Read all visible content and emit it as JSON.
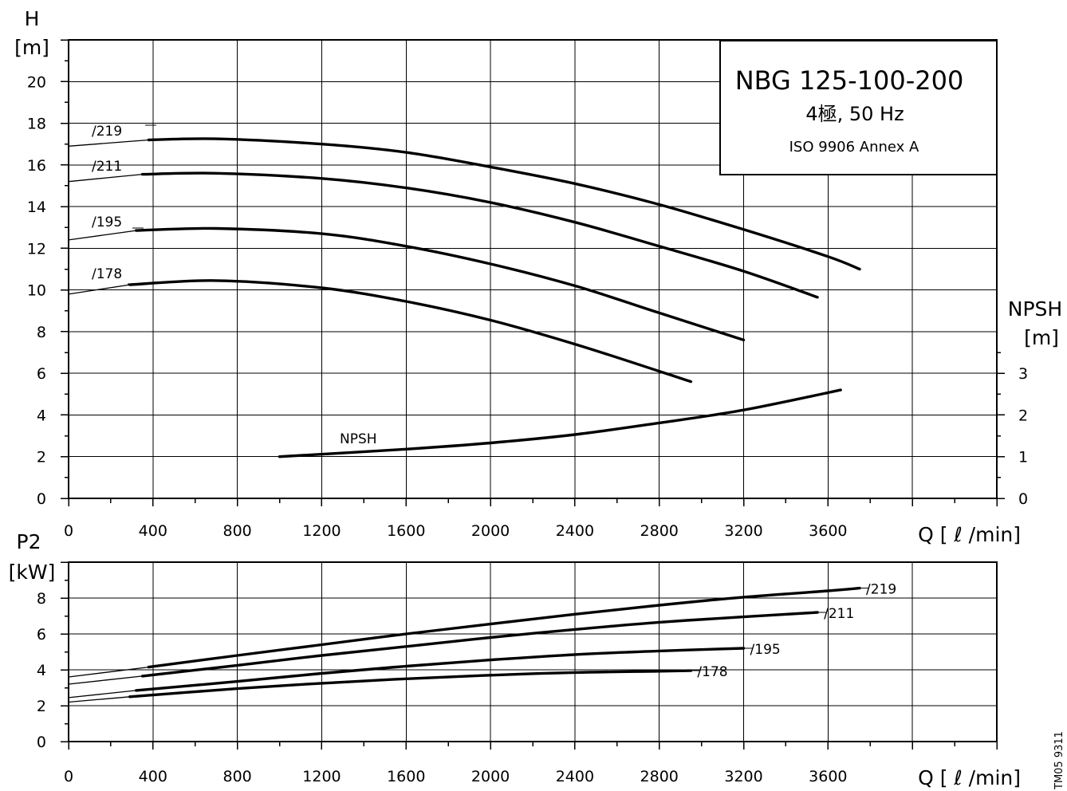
{
  "title_box": {
    "model": "NBG 125-100-200",
    "poles": "4極, 50 Hz",
    "standard": "ISO 9906 Annex A"
  },
  "figure_code": "TM05 9311",
  "chart_data": [
    {
      "type": "line",
      "xlabel": "Q [ ℓ /min]",
      "ylabel_line1": "H",
      "ylabel_line2": "[m]",
      "y2label_line1": "NPSH",
      "y2label_line2": "[m]",
      "xlim": [
        0,
        4400
      ],
      "ylim": [
        0,
        22
      ],
      "y2lim": [
        0,
        4
      ],
      "x_ticks": [
        0,
        400,
        800,
        1200,
        1600,
        2000,
        2400,
        2800,
        3200,
        3600
      ],
      "y_ticks": [
        0,
        2,
        4,
        6,
        8,
        10,
        12,
        14,
        16,
        18,
        20
      ],
      "y2_ticks": [
        0,
        1,
        2,
        3
      ],
      "grid": true,
      "series": [
        {
          "name": "/219",
          "x": [
            0,
            380,
            700,
            1200,
            1600,
            2000,
            2400,
            2800,
            3200,
            3600,
            3750
          ],
          "y": [
            16.9,
            17.2,
            17.25,
            17.0,
            16.6,
            15.9,
            15.1,
            14.1,
            12.9,
            11.6,
            11.0
          ]
        },
        {
          "name": "/211",
          "x": [
            0,
            350,
            700,
            1200,
            1600,
            2000,
            2400,
            2800,
            3200,
            3550
          ],
          "y": [
            15.2,
            15.55,
            15.6,
            15.35,
            14.9,
            14.2,
            13.25,
            12.1,
            10.9,
            9.65
          ]
        },
        {
          "name": "/195",
          "x": [
            0,
            320,
            700,
            1200,
            1600,
            2000,
            2400,
            2800,
            3200
          ],
          "y": [
            12.4,
            12.85,
            12.95,
            12.7,
            12.1,
            11.25,
            10.2,
            8.9,
            7.6
          ]
        },
        {
          "name": "/178",
          "x": [
            0,
            290,
            700,
            1200,
            1600,
            2000,
            2400,
            2800,
            2950
          ],
          "y": [
            9.8,
            10.25,
            10.45,
            10.1,
            9.45,
            8.55,
            7.4,
            6.1,
            5.6
          ]
        },
        {
          "name": "NPSH",
          "axis": "y2",
          "x": [
            1000,
            1600,
            2000,
            2400,
            2800,
            3200,
            3660
          ],
          "y": [
            1.0,
            1.18,
            1.33,
            1.53,
            1.81,
            2.12,
            2.6
          ]
        }
      ]
    },
    {
      "type": "line",
      "xlabel": "Q [ ℓ /min]",
      "ylabel_line1": "P2",
      "ylabel_line2": "[kW]",
      "xlim": [
        0,
        4400
      ],
      "ylim": [
        0,
        10
      ],
      "x_ticks": [
        0,
        400,
        800,
        1200,
        1600,
        2000,
        2400,
        2800,
        3200,
        3600
      ],
      "y_ticks": [
        0,
        2,
        4,
        6,
        8
      ],
      "grid": true,
      "series": [
        {
          "name": "/219",
          "x": [
            0,
            380,
            800,
            1200,
            1600,
            2000,
            2400,
            2800,
            3200,
            3600,
            3750
          ],
          "y": [
            3.6,
            4.15,
            4.8,
            5.4,
            6.0,
            6.55,
            7.1,
            7.6,
            8.05,
            8.4,
            8.55
          ]
        },
        {
          "name": "/211",
          "x": [
            0,
            350,
            800,
            1200,
            1600,
            2000,
            2400,
            2800,
            3200,
            3550
          ],
          "y": [
            3.2,
            3.65,
            4.25,
            4.8,
            5.3,
            5.8,
            6.25,
            6.65,
            6.95,
            7.2
          ]
        },
        {
          "name": "/195",
          "x": [
            0,
            320,
            800,
            1200,
            1600,
            2000,
            2400,
            2800,
            3200
          ],
          "y": [
            2.45,
            2.85,
            3.35,
            3.8,
            4.2,
            4.55,
            4.85,
            5.05,
            5.2
          ]
        },
        {
          "name": "/178",
          "x": [
            0,
            290,
            800,
            1200,
            1600,
            2000,
            2400,
            2800,
            2950
          ],
          "y": [
            2.2,
            2.5,
            2.95,
            3.25,
            3.5,
            3.7,
            3.85,
            3.92,
            3.95
          ]
        }
      ]
    }
  ]
}
